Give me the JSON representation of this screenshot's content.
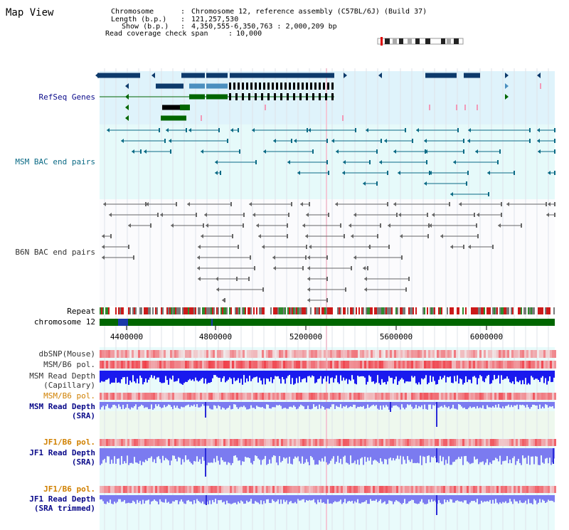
{
  "page": {
    "title": "Map View"
  },
  "info": {
    "chromosome_key": "Chromosome",
    "chromosome_val": "Chromosome 12, reference assembly (C57BL/6J) (Build 37)",
    "length_key": "Length (b.p.)",
    "length_val": "121,257,530",
    "show_key": "Show (b.p.)",
    "show_val": "4,350,555-6,350,763 : 2,000,209 bp",
    "span_key": "Read coverage check span",
    "span_val": "10,000"
  },
  "tracks": {
    "refseq": "RefSeq Genes",
    "msm_bac": "MSM BAC end pairs",
    "b6n_bac": "B6N BAC end pairs",
    "repeat": "Repeat",
    "chromosome": "chromosome 12",
    "dbsnp": "dbSNP(Mouse)",
    "msm_b6_pol_1": "MSM/B6 pol.",
    "msm_read_depth_cap_1": "MSM Read Depth",
    "msm_read_depth_cap_2": "(Capillary)",
    "msm_b6_pol_2": "MSM/B6 pol.",
    "msm_read_depth_sra_1": "MSM Read Depth",
    "msm_read_depth_sra_2": "(SRA)",
    "jf1_b6_pol_1": "JF1/B6 pol.",
    "jf1_read_depth_1": "JF1 Read Depth",
    "jf1_read_depth_2": "(SRA)",
    "jf1_b6_pol_2": "JF1/B6 pol.",
    "jf1_read_depth_trim_1": "JF1 Read Depth",
    "jf1_read_depth_trim_2": "(SRA trimmed)"
  },
  "axis": {
    "ticks": [
      "4400000",
      "4800000",
      "5200000",
      "5600000",
      "6000000"
    ]
  },
  "colors": {
    "refseq_bg": "#dff3fb",
    "msm_bac_bg": "#e6fafa",
    "b6n_bac_bg": "#ffffff",
    "gene_dark": "#0d3a6b",
    "gene_light": "#4b8fbf",
    "gene_green": "#006600",
    "msm_bac": "#0b6a85",
    "b6n_bac": "#666666",
    "chrom_bar": "#006600",
    "depth_blue": "#1a1aee",
    "depth_light": "#7b7bf0",
    "pol_red": "#e8202a",
    "label_blue": "#0a0a8a",
    "label_orange": "#d08000"
  }
}
